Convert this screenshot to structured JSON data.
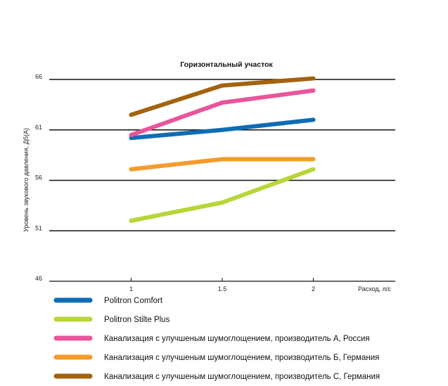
{
  "chart_data": {
    "type": "line",
    "title": "Горизонтальный участок",
    "xlabel": "Расход, л/с",
    "ylabel": "Уровень звукового давления, Дб(А)",
    "x": [
      1,
      1.5,
      2
    ],
    "x_ticks": [
      "1",
      "1.5",
      "2"
    ],
    "y_ticks": [
      "46",
      "51",
      "56",
      "61",
      "66"
    ],
    "xlim": [
      0.55,
      2.45
    ],
    "ylim": [
      46,
      66
    ],
    "grid": true,
    "legend_position": "bottom",
    "series": [
      {
        "name": "Politron Comfort",
        "color": "#0f6db3",
        "values": [
          60.2,
          61,
          62
        ]
      },
      {
        "name": "Politron Stilte Plus",
        "color": "#b7d637",
        "values": [
          52,
          53.8,
          57.1
        ]
      },
      {
        "name": "Канализация с улучшеным шумоглощением, производитель А, Россия",
        "color": "#e8559b",
        "values": [
          60.5,
          63.7,
          64.9
        ]
      },
      {
        "name": "Канализация с улучшеным шумоглощением, производитель Б, Германия",
        "color": "#f59b2a",
        "values": [
          57.1,
          58.1,
          58.1
        ]
      },
      {
        "name": "Канализация с улучшеным шумоглощением, производитель С, Германия",
        "color": "#a2630f",
        "values": [
          62.5,
          65.4,
          66.1
        ]
      }
    ]
  }
}
